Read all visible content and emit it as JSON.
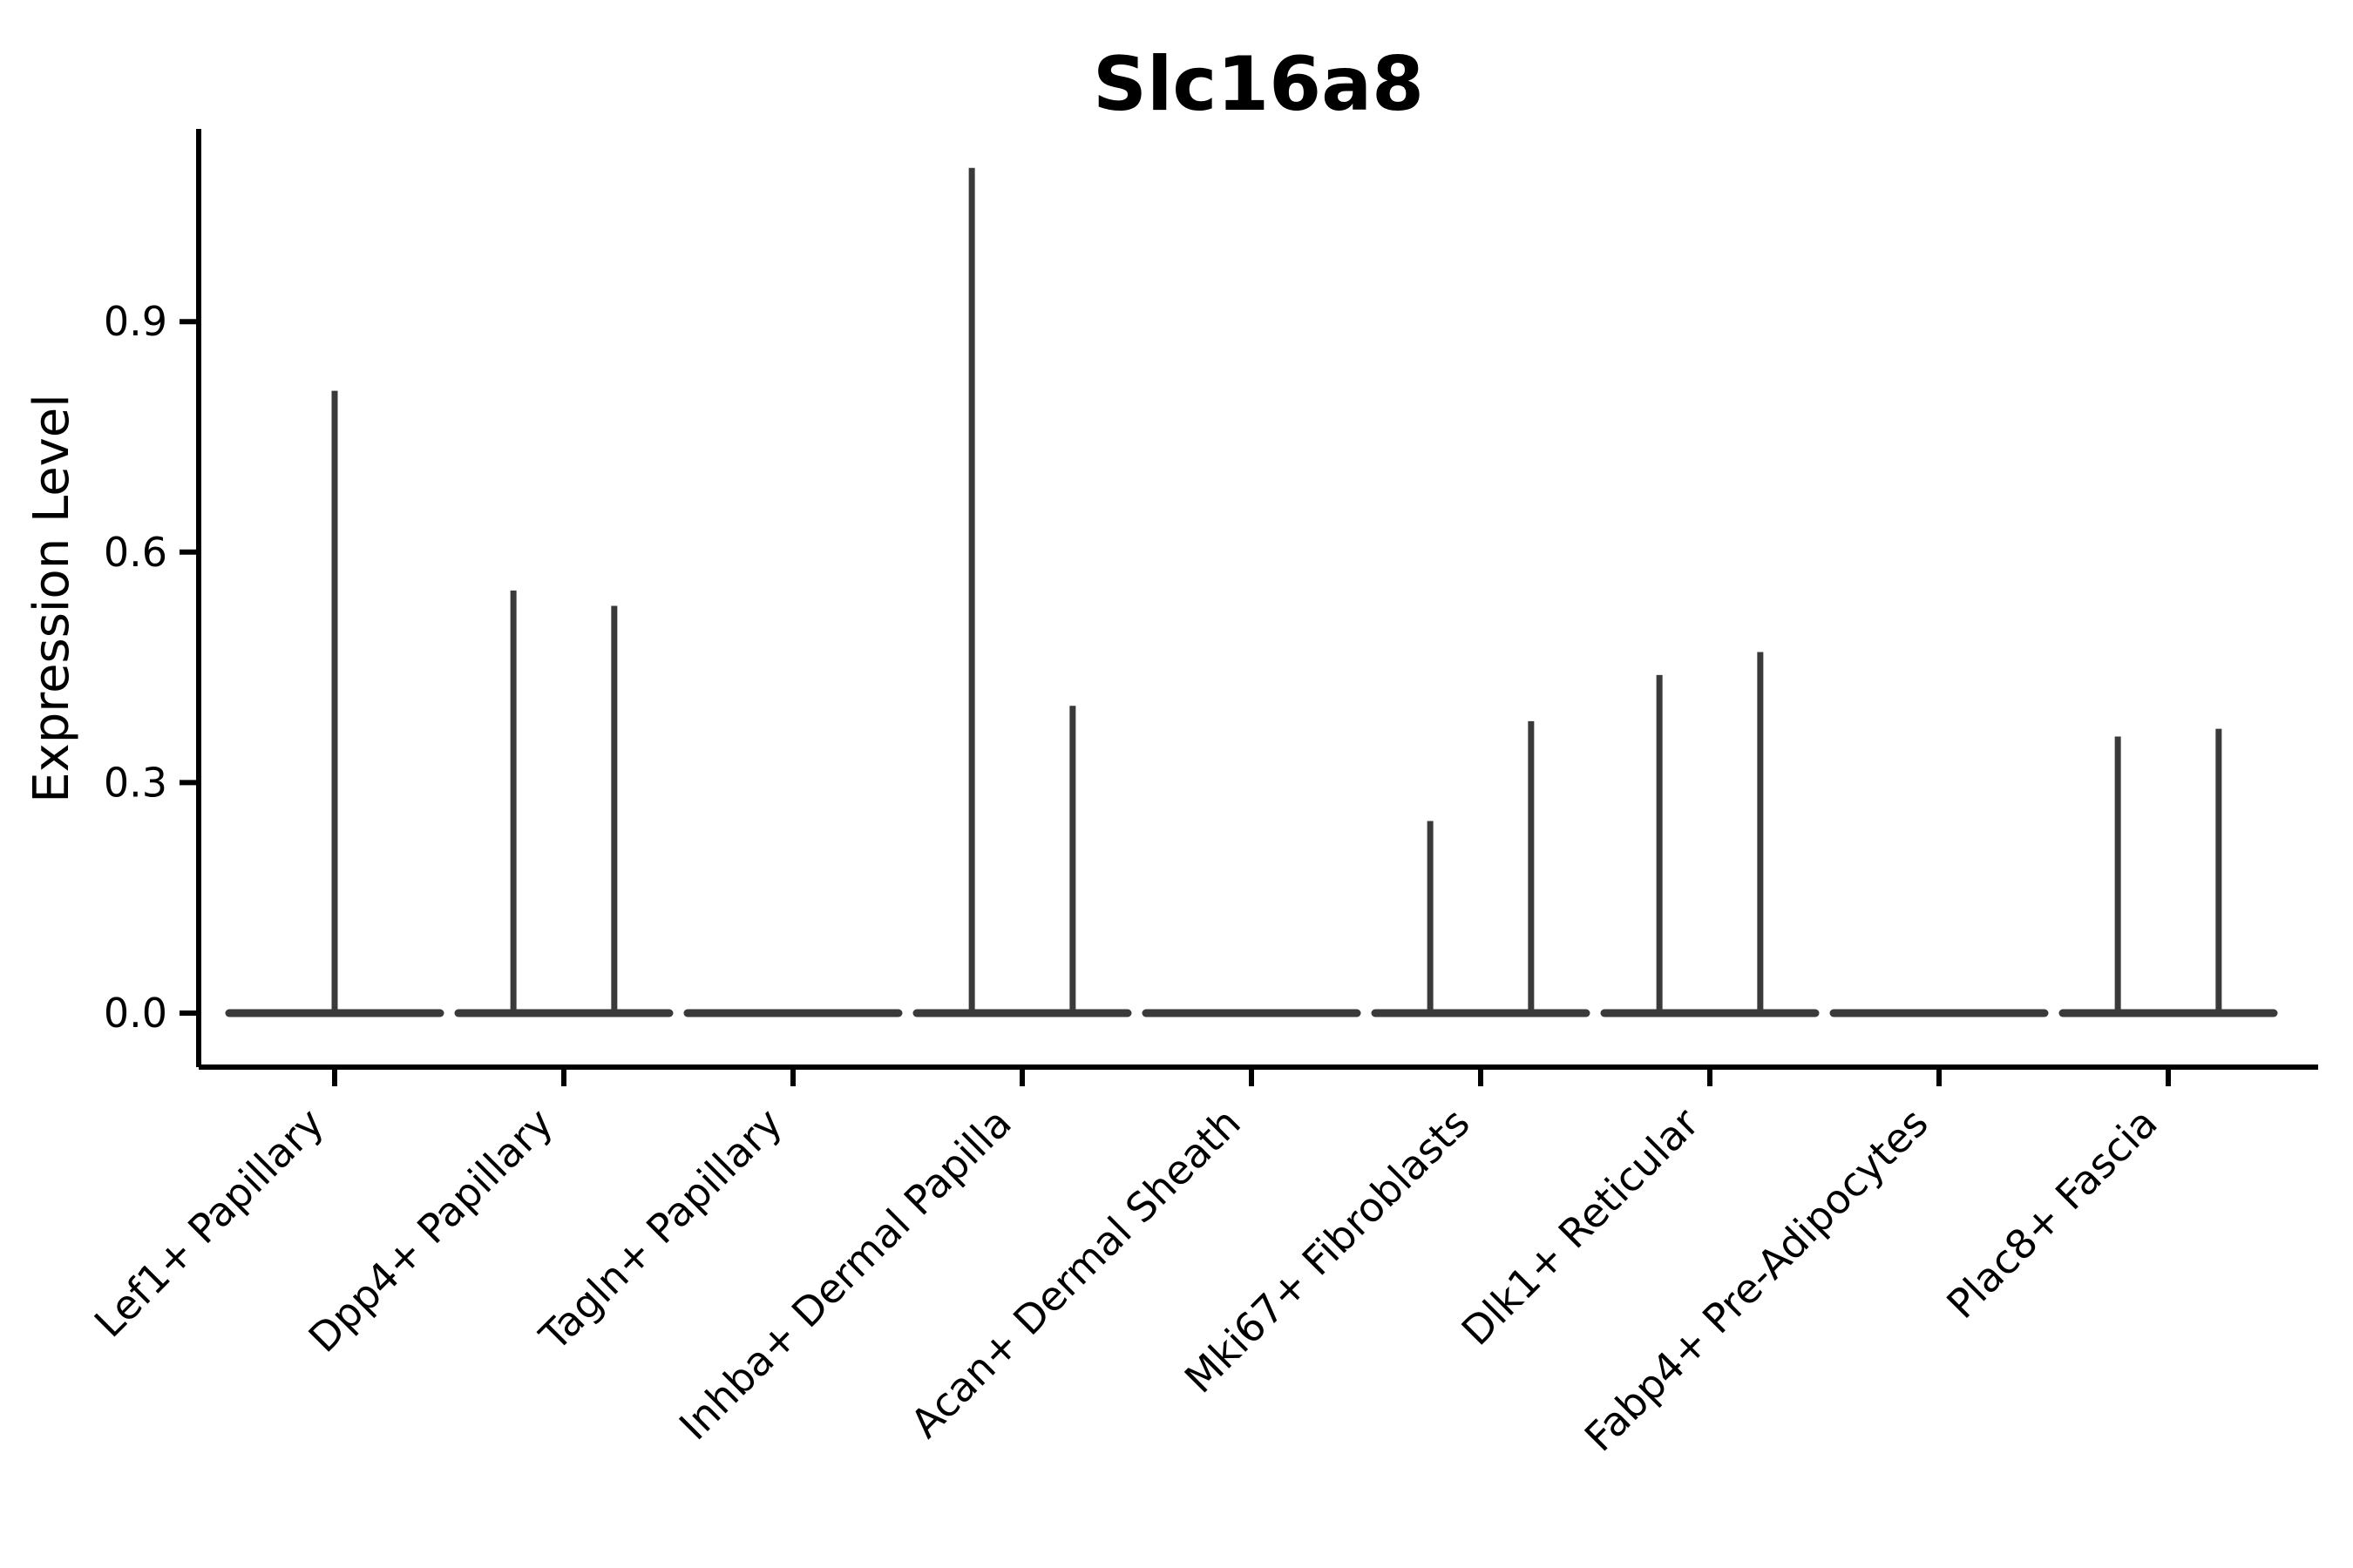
{
  "chart_data": {
    "type": "violin",
    "title": "Slc16a8",
    "xlabel": "",
    "ylabel": "Expression Level",
    "ylim": [
      0,
      1.15
    ],
    "yticks": [
      0.0,
      0.3,
      0.6,
      0.9
    ],
    "grid": false,
    "legend": false,
    "categories": [
      "Lef1+ Papillary",
      "Dpp4+ Papillary",
      "Tagln+ Papillary",
      "Inhba+ Dermal Papilla",
      "Acan+ Dermal Sheath",
      "Mki67+ Fibroblasts",
      "Dlk1+ Reticular",
      "Fabp4+ Pre-Adipocytes",
      "Plac8+ Fascia"
    ],
    "violins": [
      {
        "category": "Lef1+ Papillary",
        "base_value": 0.0,
        "spikes": [
          {
            "offset": 0.0,
            "max": 0.81
          }
        ]
      },
      {
        "category": "Dpp4+ Papillary",
        "base_value": 0.0,
        "spikes": [
          {
            "offset": -0.22,
            "max": 0.55
          },
          {
            "offset": 0.22,
            "max": 0.53
          }
        ]
      },
      {
        "category": "Tagln+ Papillary",
        "base_value": 0.0,
        "spikes": []
      },
      {
        "category": "Inhba+ Dermal Papilla",
        "base_value": 0.0,
        "spikes": [
          {
            "offset": -0.22,
            "max": 1.1
          },
          {
            "offset": 0.22,
            "max": 0.4
          }
        ]
      },
      {
        "category": "Acan+ Dermal Sheath",
        "base_value": 0.0,
        "spikes": []
      },
      {
        "category": "Mki67+ Fibroblasts",
        "base_value": 0.0,
        "spikes": [
          {
            "offset": -0.22,
            "max": 0.25
          },
          {
            "offset": 0.22,
            "max": 0.38
          }
        ]
      },
      {
        "category": "Dlk1+ Reticular",
        "base_value": 0.0,
        "spikes": [
          {
            "offset": -0.22,
            "max": 0.44
          },
          {
            "offset": 0.22,
            "max": 0.47
          }
        ]
      },
      {
        "category": "Fabp4+ Pre-Adipocytes",
        "base_value": 0.0,
        "spikes": []
      },
      {
        "category": "Plac8+ Fascia",
        "base_value": 0.0,
        "spikes": [
          {
            "offset": -0.22,
            "max": 0.36
          },
          {
            "offset": 0.22,
            "max": 0.37
          }
        ]
      }
    ],
    "colors": {
      "violin": "#3a3a3a",
      "axis": "#000000",
      "text": "#000000",
      "background": "#ffffff"
    }
  }
}
